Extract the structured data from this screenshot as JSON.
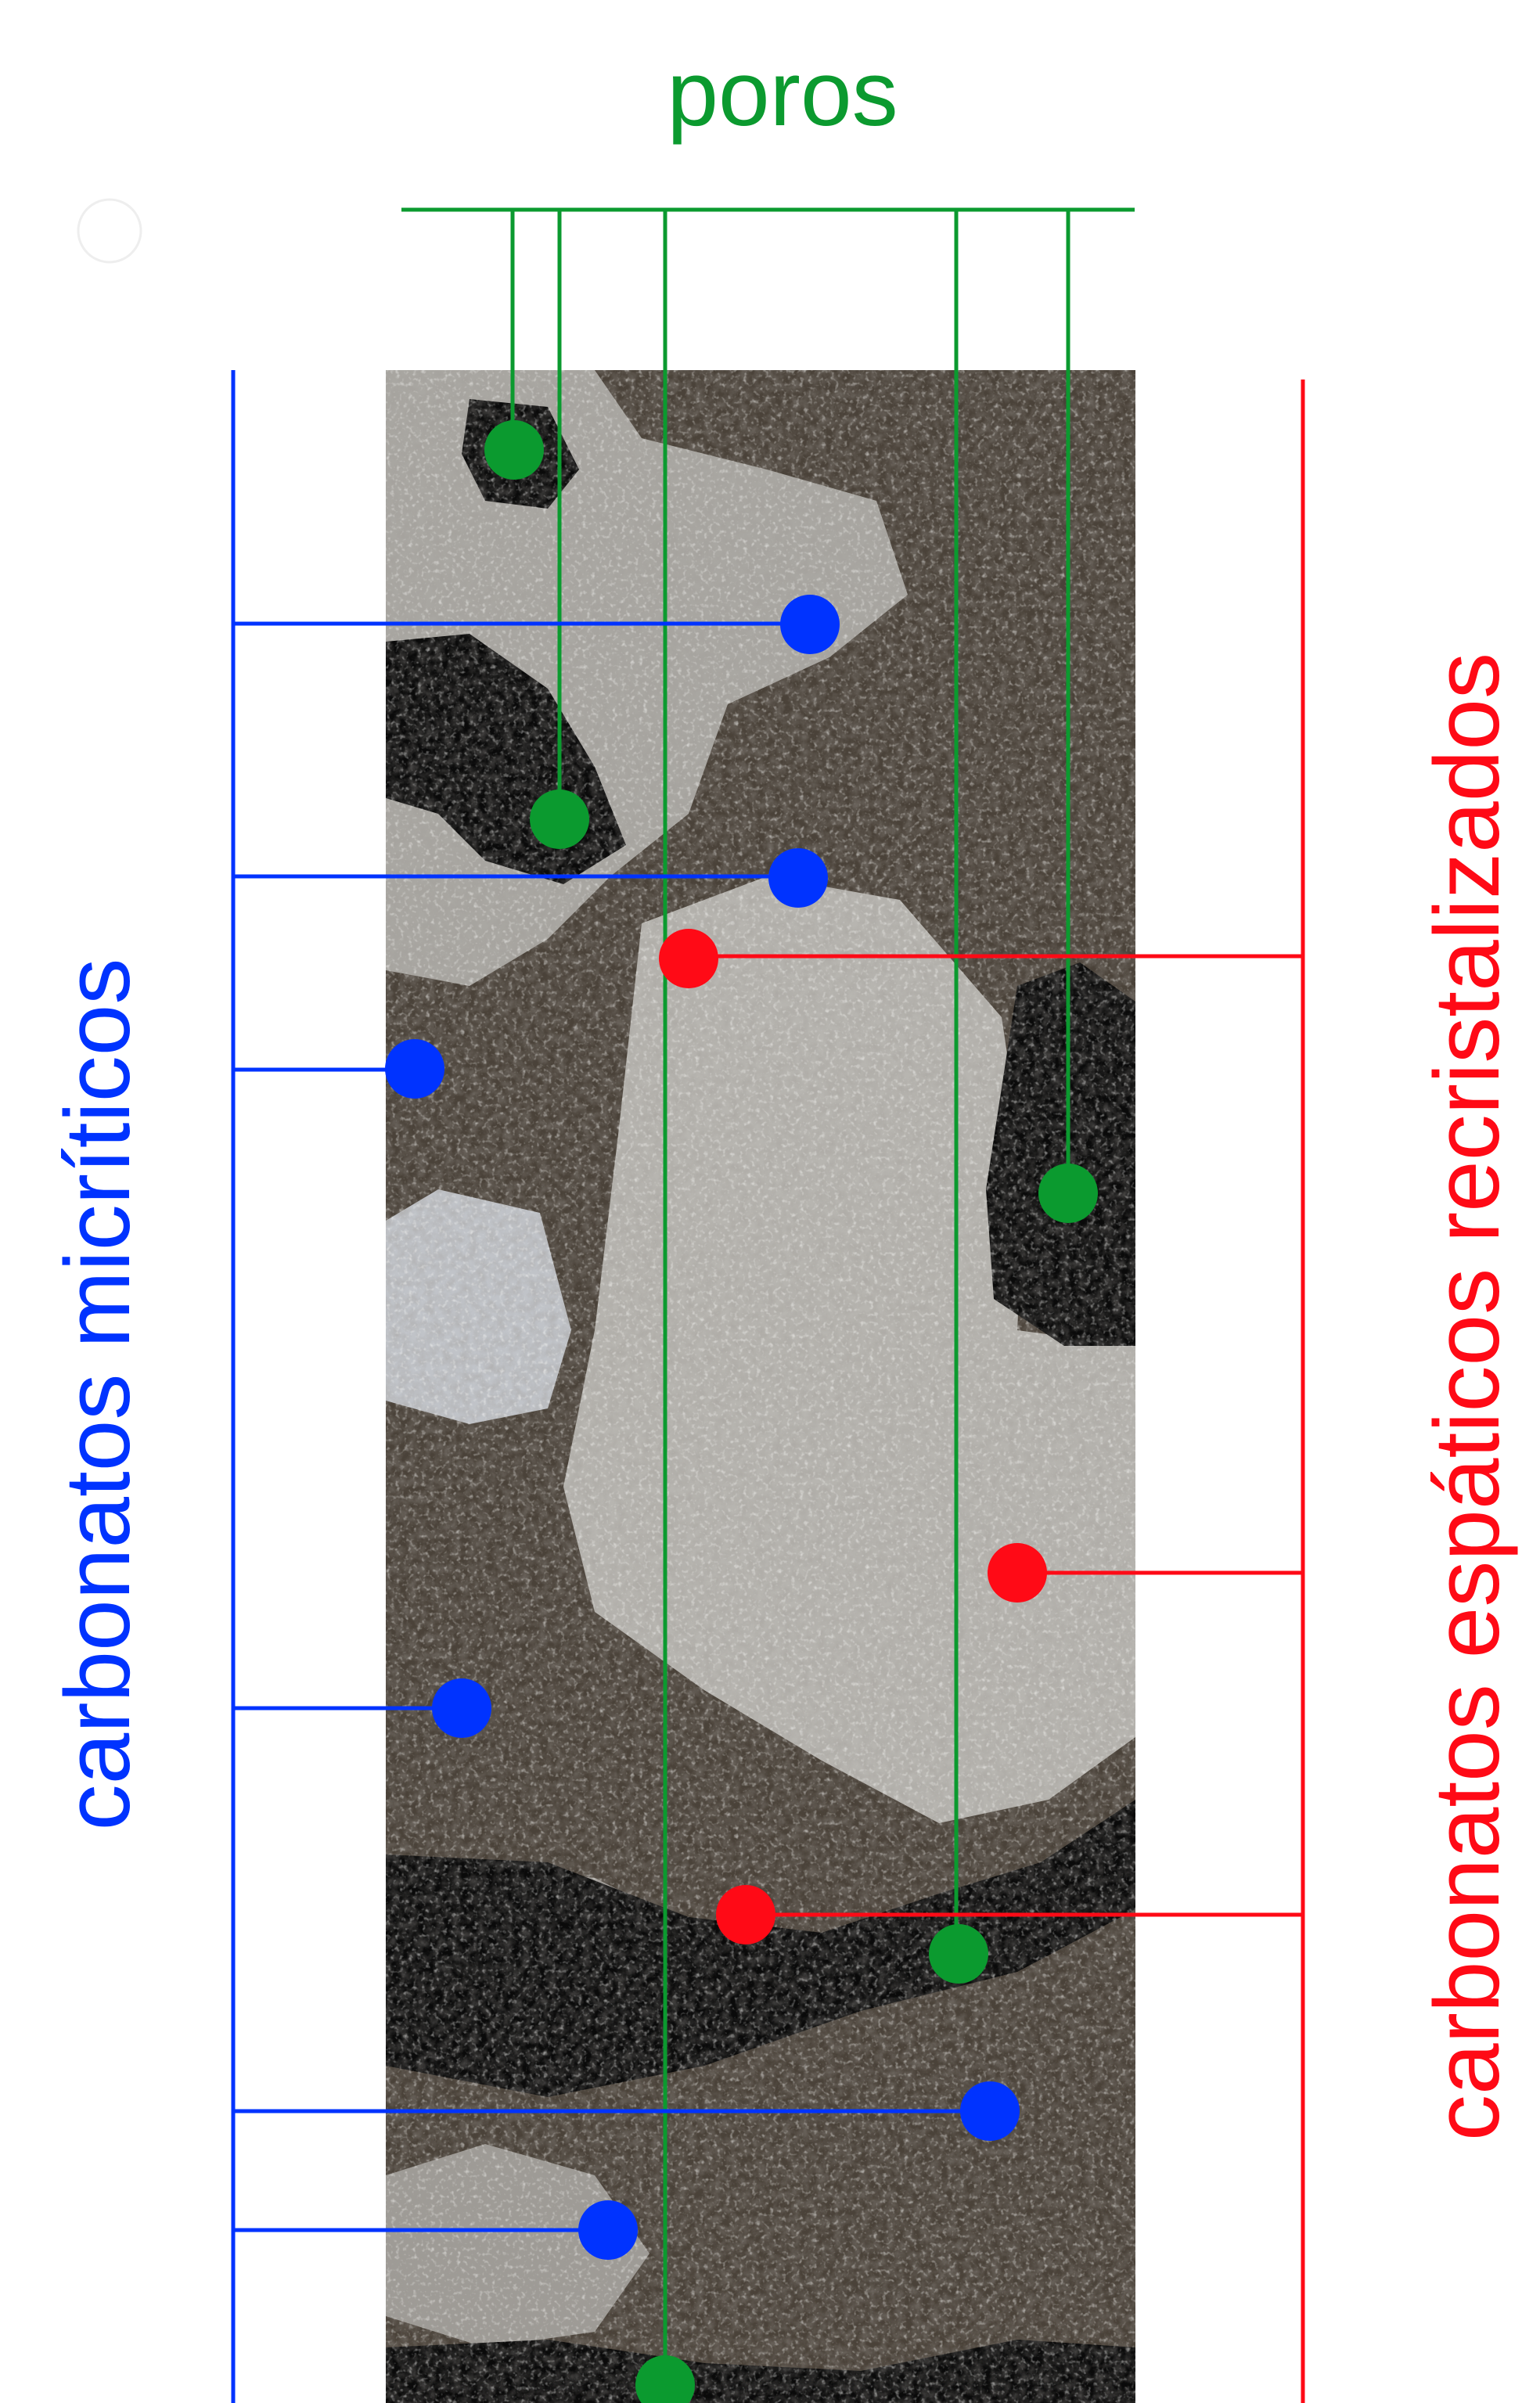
{
  "labels": {
    "pores": "poros",
    "micritic": "carbonatos micríticos",
    "sparry": "carbonatos espáticos recristalizados"
  },
  "colors": {
    "pores": "#0b9a2f",
    "micritic": "#0033ff",
    "sparry": "#ff0a16",
    "background": "#ffffff",
    "thin_section_dark": "#0a0a0a",
    "thin_section_micrite": "#4a4239",
    "thin_section_spar": "#b8b8b4"
  },
  "image": {
    "subject": "thin-section-photomicrograph"
  }
}
